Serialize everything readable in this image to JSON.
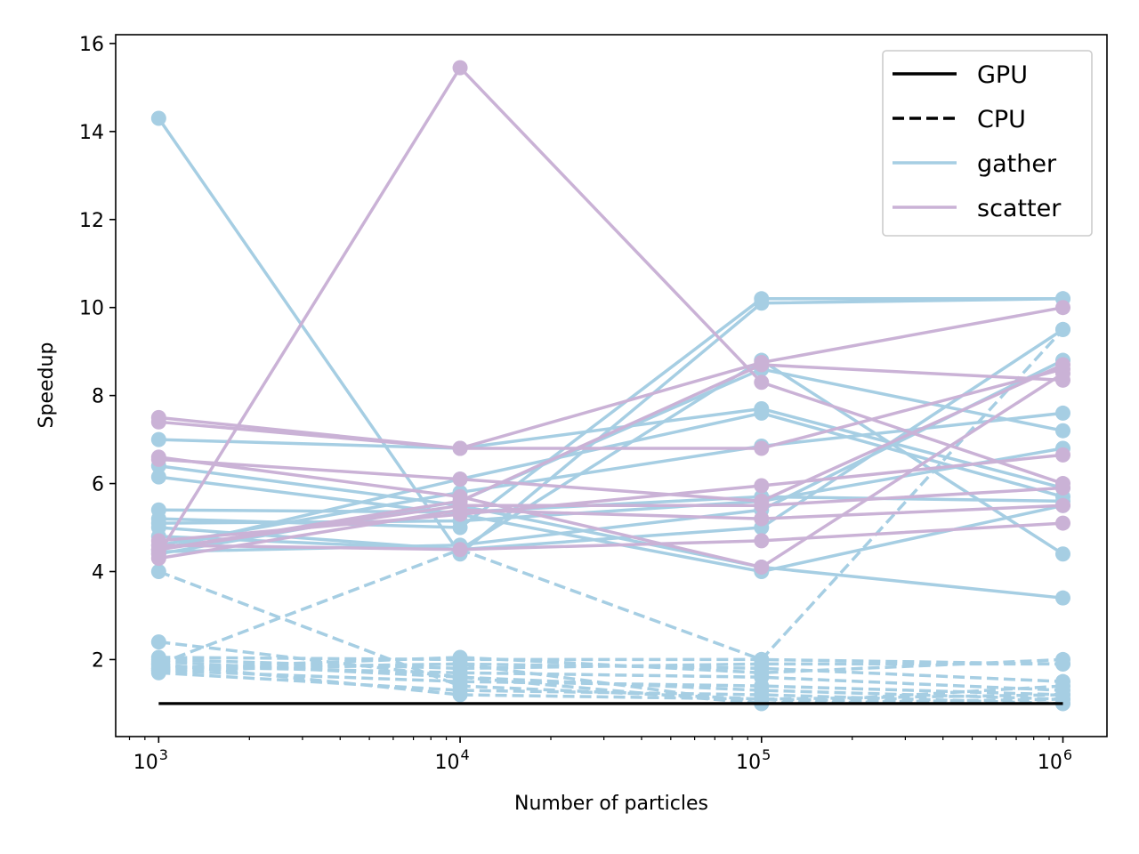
{
  "chart_data": {
    "type": "line",
    "xlabel": "Number of particles",
    "ylabel": "Speedup",
    "xscale": "log",
    "x": [
      1000,
      10000,
      100000,
      1000000
    ],
    "xtick_labels": [
      {
        "base": "10",
        "exp": "3"
      },
      {
        "base": "10",
        "exp": "4"
      },
      {
        "base": "10",
        "exp": "5"
      },
      {
        "base": "10",
        "exp": "6"
      }
    ],
    "xlim": [
      720,
      1400000
    ],
    "ylim": [
      0.25,
      16.2
    ],
    "yticks": [
      2,
      4,
      6,
      8,
      10,
      12,
      14,
      16
    ],
    "ytick_labels": [
      "2",
      "4",
      "6",
      "8",
      "10",
      "12",
      "14",
      "16"
    ],
    "grid": false,
    "legend": {
      "position": "top-right",
      "entries": [
        {
          "label": "GPU",
          "color": "#000000",
          "style": "solid"
        },
        {
          "label": "CPU",
          "color": "#000000",
          "style": "dashed"
        },
        {
          "label": "gather",
          "color": "#a6cee3",
          "style": "solid"
        },
        {
          "label": "scatter",
          "color": "#cab2d6",
          "style": "solid"
        }
      ]
    },
    "colors": {
      "gather": "#a6cee3",
      "scatter": "#cab2d6",
      "baseline": "#000000"
    },
    "baseline": {
      "values": [
        1.0,
        1.0,
        1.0,
        1.0
      ]
    },
    "series": [
      {
        "group": "gather",
        "device": "GPU",
        "values": [
          14.3,
          4.4,
          10.1,
          10.2
        ]
      },
      {
        "group": "gather",
        "device": "GPU",
        "values": [
          7.0,
          6.8,
          7.7,
          5.9
        ]
      },
      {
        "group": "gather",
        "device": "GPU",
        "values": [
          6.4,
          5.5,
          4.1,
          3.4
        ]
      },
      {
        "group": "gather",
        "device": "GPU",
        "values": [
          6.15,
          5.3,
          4.0,
          5.5
        ]
      },
      {
        "group": "gather",
        "device": "GPU",
        "values": [
          5.4,
          5.35,
          5.7,
          5.6
        ]
      },
      {
        "group": "gather",
        "device": "GPU",
        "values": [
          5.2,
          5.0,
          10.2,
          10.2
        ]
      },
      {
        "group": "gather",
        "device": "GPU",
        "values": [
          5.0,
          4.5,
          8.8,
          4.4
        ]
      },
      {
        "group": "gather",
        "device": "GPU",
        "values": [
          4.8,
          4.5,
          5.0,
          9.5
        ]
      },
      {
        "group": "gather",
        "device": "GPU",
        "values": [
          4.5,
          6.1,
          7.6,
          5.7
        ]
      },
      {
        "group": "gather",
        "device": "GPU",
        "values": [
          4.4,
          5.6,
          8.6,
          7.2
        ]
      },
      {
        "group": "gather",
        "device": "GPU",
        "values": [
          4.6,
          5.8,
          6.85,
          7.6
        ]
      },
      {
        "group": "gather",
        "device": "GPU",
        "values": [
          4.45,
          4.6,
          5.4,
          8.8
        ]
      },
      {
        "group": "gather",
        "device": "GPU",
        "values": [
          5.1,
          5.15,
          5.6,
          6.8
        ]
      },
      {
        "group": "gather",
        "device": "CPU",
        "values": [
          4.0,
          1.4,
          1.1,
          1.2
        ]
      },
      {
        "group": "gather",
        "device": "CPU",
        "values": [
          2.4,
          1.6,
          1.0,
          1.1
        ]
      },
      {
        "group": "gather",
        "device": "CPU",
        "values": [
          2.0,
          1.8,
          1.9,
          1.9
        ]
      },
      {
        "group": "gather",
        "device": "CPU",
        "values": [
          1.9,
          4.5,
          2.0,
          9.5
        ]
      },
      {
        "group": "gather",
        "device": "CPU",
        "values": [
          2.05,
          2.0,
          2.0,
          1.9
        ]
      },
      {
        "group": "gather",
        "device": "CPU",
        "values": [
          1.8,
          1.9,
          1.8,
          1.5
        ]
      },
      {
        "group": "gather",
        "device": "CPU",
        "values": [
          1.85,
          1.7,
          1.6,
          1.3
        ]
      },
      {
        "group": "gather",
        "device": "CPU",
        "values": [
          1.75,
          1.5,
          1.4,
          1.2
        ]
      },
      {
        "group": "gather",
        "device": "CPU",
        "values": [
          1.7,
          1.3,
          1.2,
          1.0
        ]
      },
      {
        "group": "gather",
        "device": "CPU",
        "values": [
          1.9,
          1.2,
          1.1,
          1.0
        ]
      },
      {
        "group": "gather",
        "device": "CPU",
        "values": [
          1.8,
          2.05,
          1.7,
          2.0
        ]
      },
      {
        "group": "gather",
        "device": "CPU",
        "values": [
          1.95,
          1.6,
          1.3,
          1.1
        ]
      },
      {
        "group": "gather",
        "device": "CPU",
        "values": [
          1.75,
          1.9,
          1.0,
          1.4
        ]
      },
      {
        "group": "scatter",
        "device": "GPU",
        "values": [
          4.4,
          15.45,
          8.3,
          6.0
        ]
      },
      {
        "group": "scatter",
        "device": "GPU",
        "values": [
          7.5,
          6.8,
          8.75,
          10.0
        ]
      },
      {
        "group": "scatter",
        "device": "GPU",
        "values": [
          7.4,
          6.8,
          6.8,
          8.6
        ]
      },
      {
        "group": "scatter",
        "device": "GPU",
        "values": [
          6.6,
          5.7,
          4.1,
          8.5
        ]
      },
      {
        "group": "scatter",
        "device": "GPU",
        "values": [
          4.7,
          5.3,
          5.95,
          6.65
        ]
      },
      {
        "group": "scatter",
        "device": "GPU",
        "values": [
          4.5,
          5.6,
          8.7,
          8.35
        ]
      },
      {
        "group": "scatter",
        "device": "GPU",
        "values": [
          4.6,
          4.5,
          4.7,
          5.1
        ]
      },
      {
        "group": "scatter",
        "device": "GPU",
        "values": [
          4.3,
          5.4,
          5.2,
          5.5
        ]
      },
      {
        "group": "scatter",
        "device": "GPU",
        "values": [
          6.55,
          6.1,
          5.6,
          8.7
        ]
      },
      {
        "group": "scatter",
        "device": "GPU",
        "values": [
          4.5,
          5.5,
          5.5,
          5.9
        ]
      }
    ]
  }
}
